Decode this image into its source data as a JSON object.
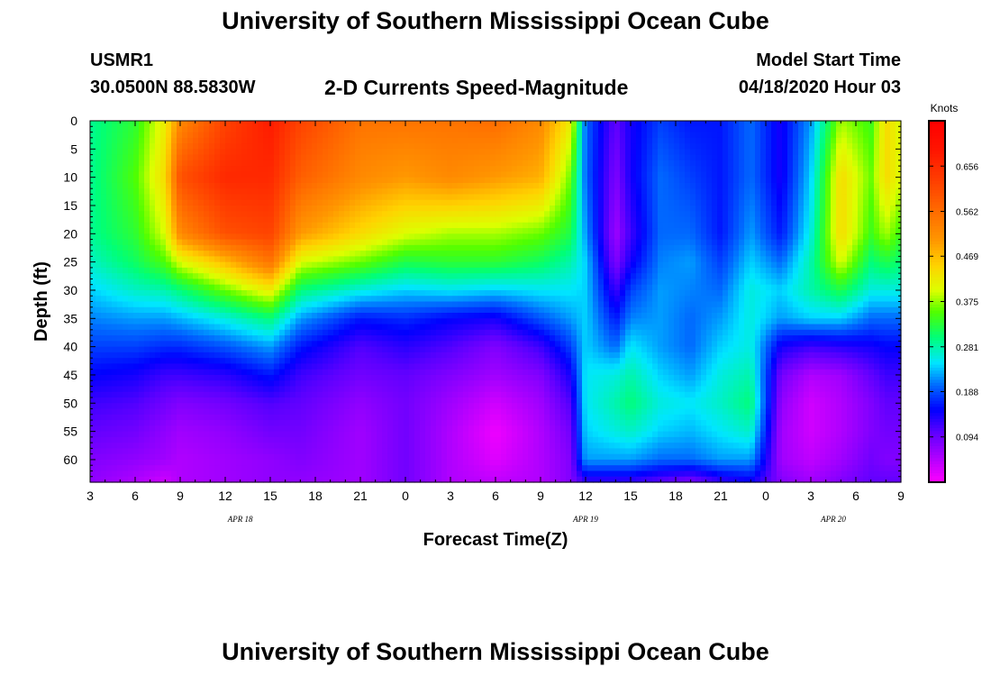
{
  "header": {
    "title": "University of Southern Mississippi Ocean Cube",
    "station_id": "USMR1",
    "coordinates": "30.0500N 88.5830W",
    "plot_title": "2-D Currents Speed-Magnitude",
    "model_start_label": "Model Start Time",
    "model_start_value": "04/18/2020 Hour 03"
  },
  "footer": {
    "title": "University of Southern Mississippi Ocean Cube"
  },
  "chart_data": {
    "type": "heatmap",
    "title": "2-D Currents Speed-Magnitude",
    "xlabel": "Forecast Time(Z)",
    "ylabel": "Depth (ft)",
    "x_range_hours": [
      0,
      54
    ],
    "y_range_ft": [
      0,
      64
    ],
    "x_tick_labels": [
      "3",
      "6",
      "9",
      "12",
      "15",
      "18",
      "21",
      "0",
      "3",
      "6",
      "9",
      "12",
      "15",
      "18",
      "21",
      "0",
      "3",
      "6",
      "9"
    ],
    "y_ticks": [
      0,
      5,
      10,
      15,
      20,
      25,
      30,
      35,
      40,
      45,
      50,
      55,
      60
    ],
    "date_labels": [
      {
        "label": "APR 18",
        "hour": 10
      },
      {
        "label": "APR 19",
        "hour": 33
      },
      {
        "label": "APR 20",
        "hour": 49.5
      }
    ],
    "colorbar": {
      "label": "Knots",
      "min": 0.0,
      "max": 0.75,
      "tick_values": [
        0.094,
        0.188,
        0.281,
        0.375,
        0.469,
        0.562,
        0.656
      ],
      "tick_labels": [
        "0.094",
        "0.188",
        "0.281",
        "0.375",
        "0.469",
        "0.562",
        "0.656"
      ]
    },
    "profile_depths_ft": [
      0,
      10,
      20,
      25,
      30,
      35,
      40,
      45,
      50,
      55,
      60,
      64
    ],
    "profiles": [
      {
        "t": 0,
        "speed": [
          0.29,
          0.29,
          0.29,
          0.27,
          0.24,
          0.21,
          0.18,
          0.15,
          0.12,
          0.1,
          0.08,
          0.07
        ]
      },
      {
        "t": 3,
        "speed": [
          0.33,
          0.35,
          0.33,
          0.31,
          0.27,
          0.22,
          0.18,
          0.14,
          0.11,
          0.09,
          0.07,
          0.05
        ]
      },
      {
        "t": 5,
        "speed": [
          0.42,
          0.44,
          0.4,
          0.35,
          0.28,
          0.22,
          0.17,
          0.12,
          0.09,
          0.07,
          0.06,
          0.03
        ]
      },
      {
        "t": 6,
        "speed": [
          0.52,
          0.6,
          0.52,
          0.4,
          0.3,
          0.23,
          0.17,
          0.12,
          0.08,
          0.06,
          0.05,
          0.05
        ]
      },
      {
        "t": 9,
        "speed": [
          0.62,
          0.66,
          0.6,
          0.47,
          0.36,
          0.26,
          0.19,
          0.13,
          0.09,
          0.07,
          0.06,
          0.06
        ]
      },
      {
        "t": 12,
        "speed": [
          0.68,
          0.66,
          0.62,
          0.55,
          0.42,
          0.3,
          0.22,
          0.16,
          0.11,
          0.09,
          0.07,
          0.07
        ]
      },
      {
        "t": 14,
        "speed": [
          0.62,
          0.58,
          0.5,
          0.4,
          0.3,
          0.22,
          0.16,
          0.12,
          0.1,
          0.09,
          0.08,
          0.07
        ]
      },
      {
        "t": 18,
        "speed": [
          0.55,
          0.52,
          0.44,
          0.36,
          0.26,
          0.16,
          0.11,
          0.09,
          0.07,
          0.06,
          0.06,
          0.06
        ]
      },
      {
        "t": 21,
        "speed": [
          0.55,
          0.5,
          0.4,
          0.32,
          0.24,
          0.17,
          0.13,
          0.1,
          0.09,
          0.09,
          0.09,
          0.09
        ]
      },
      {
        "t": 24,
        "speed": [
          0.55,
          0.52,
          0.38,
          0.33,
          0.25,
          0.15,
          0.11,
          0.08,
          0.06,
          0.05,
          0.05,
          0.05
        ]
      },
      {
        "t": 27,
        "speed": [
          0.56,
          0.5,
          0.38,
          0.33,
          0.24,
          0.14,
          0.08,
          0.06,
          0.03,
          0.01,
          0.02,
          0.04
        ]
      },
      {
        "t": 30,
        "speed": [
          0.52,
          0.48,
          0.36,
          0.31,
          0.25,
          0.19,
          0.12,
          0.08,
          0.06,
          0.05,
          0.05,
          0.05
        ]
      },
      {
        "t": 32,
        "speed": [
          0.42,
          0.36,
          0.32,
          0.28,
          0.25,
          0.22,
          0.18,
          0.14,
          0.11,
          0.09,
          0.08,
          0.08
        ]
      },
      {
        "t": 33,
        "speed": [
          0.2,
          0.2,
          0.22,
          0.24,
          0.24,
          0.24,
          0.24,
          0.25,
          0.25,
          0.24,
          0.22,
          0.12
        ]
      },
      {
        "t": 35,
        "speed": [
          0.1,
          0.08,
          0.06,
          0.08,
          0.12,
          0.16,
          0.2,
          0.26,
          0.28,
          0.26,
          0.22,
          0.12
        ]
      },
      {
        "t": 36,
        "speed": [
          0.14,
          0.14,
          0.12,
          0.14,
          0.18,
          0.21,
          0.25,
          0.28,
          0.3,
          0.27,
          0.22,
          0.12
        ]
      },
      {
        "t": 38,
        "speed": [
          0.18,
          0.2,
          0.2,
          0.21,
          0.22,
          0.22,
          0.22,
          0.24,
          0.26,
          0.24,
          0.2,
          0.1
        ]
      },
      {
        "t": 40,
        "speed": [
          0.16,
          0.18,
          0.2,
          0.22,
          0.21,
          0.2,
          0.2,
          0.22,
          0.25,
          0.23,
          0.2,
          0.08
        ]
      },
      {
        "t": 42,
        "speed": [
          0.16,
          0.16,
          0.16,
          0.18,
          0.2,
          0.22,
          0.24,
          0.26,
          0.27,
          0.25,
          0.22,
          0.12
        ]
      },
      {
        "t": 44,
        "speed": [
          0.2,
          0.2,
          0.22,
          0.24,
          0.26,
          0.26,
          0.26,
          0.28,
          0.3,
          0.27,
          0.22,
          0.14
        ]
      },
      {
        "t": 46,
        "speed": [
          0.14,
          0.14,
          0.16,
          0.2,
          0.24,
          0.22,
          0.14,
          0.09,
          0.07,
          0.06,
          0.06,
          0.08
        ]
      },
      {
        "t": 48,
        "speed": [
          0.22,
          0.24,
          0.26,
          0.28,
          0.28,
          0.24,
          0.12,
          0.05,
          0.03,
          0.03,
          0.04,
          0.06
        ]
      },
      {
        "t": 50,
        "speed": [
          0.38,
          0.44,
          0.44,
          0.4,
          0.32,
          0.24,
          0.13,
          0.06,
          0.05,
          0.05,
          0.06,
          0.08
        ]
      },
      {
        "t": 52,
        "speed": [
          0.34,
          0.36,
          0.34,
          0.3,
          0.26,
          0.2,
          0.14,
          0.1,
          0.08,
          0.08,
          0.09,
          0.1
        ]
      },
      {
        "t": 53,
        "speed": [
          0.44,
          0.44,
          0.38,
          0.32,
          0.26,
          0.2,
          0.15,
          0.12,
          0.1,
          0.09,
          0.08,
          0.1
        ]
      },
      {
        "t": 54,
        "speed": [
          0.4,
          0.4,
          0.34,
          0.3,
          0.26,
          0.2,
          0.15,
          0.12,
          0.1,
          0.09,
          0.08,
          0.1
        ]
      }
    ]
  }
}
